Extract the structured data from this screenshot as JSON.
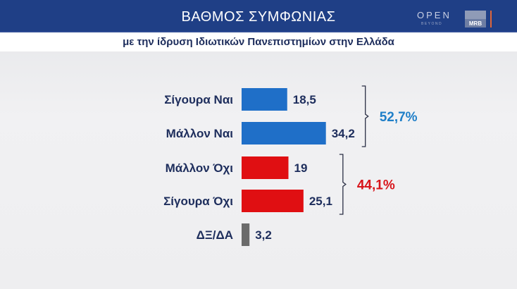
{
  "header": {
    "title": "ΒΑΘΜΟΣ ΣΥΜΦΩΝΙΑΣ",
    "logo_open": "OPEN",
    "logo_beyond": "BEYOND",
    "logo_mrb": "MRB",
    "subtitle": "με την ίδρυση Ιδιωτικών Πανεπιστημίων στην Ελλάδα"
  },
  "chart_data": {
    "type": "bar",
    "orientation": "horizontal",
    "title": "ΒΑΘΜΟΣ ΣΥΜΦΩΝΙΑΣ",
    "subtitle": "με την ίδρυση Ιδιωτικών Πανεπιστημίων στην Ελλάδα",
    "categories": [
      "Σίγουρα Ναι",
      "Μάλλον Ναι",
      "Μάλλον Όχι",
      "Σίγουρα Όχι",
      "ΔΞ/ΔΑ"
    ],
    "values": [
      18.5,
      34.2,
      19,
      25.1,
      3.2
    ],
    "value_labels": [
      "18,5",
      "34,2",
      "19",
      "25,1",
      "3,2"
    ],
    "colors": [
      "#1f6fc8",
      "#1f6fc8",
      "#e00f12",
      "#e00f12",
      "#6b6b6b"
    ],
    "groups": [
      {
        "label": "52,7%",
        "members": [
          0,
          1
        ],
        "color": "#1f7fc8"
      },
      {
        "label": "44,1%",
        "members": [
          2,
          3
        ],
        "color": "#d8141a"
      }
    ],
    "grid": false
  }
}
